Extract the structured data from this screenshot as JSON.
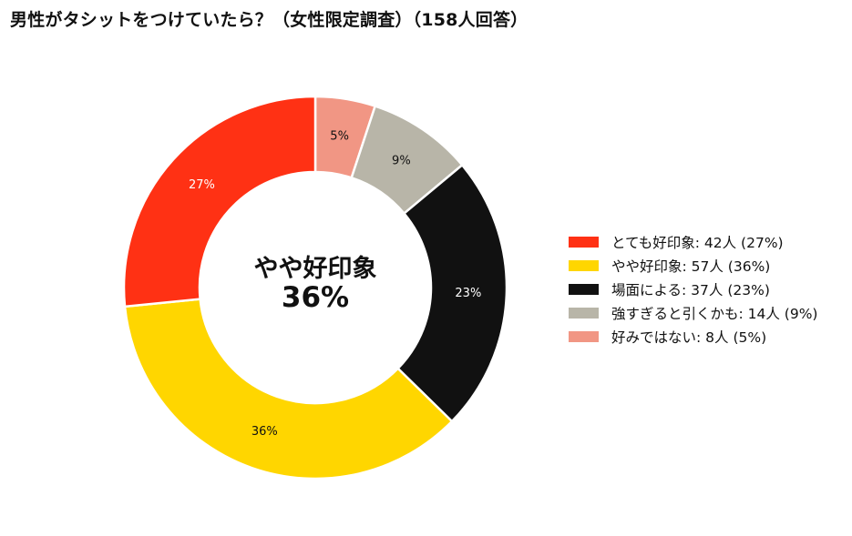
{
  "title": "男性がタシットをつけていたら？（女性限定調査）（158人回答）",
  "center": {
    "category": "やや好印象",
    "value": "36%"
  },
  "chart_data": {
    "type": "pie",
    "donut": true,
    "title": "男性がタシットをつけていたら？（女性限定調査）（158人回答）",
    "total": 158,
    "start_angle_deg": 0,
    "direction": "clockwise",
    "legend_position": "right",
    "categories": [
      "とても好印象",
      "やや好印象",
      "場面による",
      "強すぎると引くかも",
      "好みではない"
    ],
    "values": [
      42,
      57,
      37,
      14,
      8
    ],
    "percent_labels": [
      "27%",
      "36%",
      "23%",
      "9%",
      "5%"
    ],
    "colors": [
      "#ff3114",
      "#ffd600",
      "#111111",
      "#b8b5a8",
      "#f19684"
    ],
    "label_colors": [
      "#ffffff",
      "#111111",
      "#ffffff",
      "#111111",
      "#111111"
    ],
    "slice_order": [
      4,
      3,
      2,
      1,
      0
    ]
  },
  "legend": {
    "items": [
      {
        "label": "とても好印象:  42人 (27%)",
        "color": "#ff3114"
      },
      {
        "label": "やや好印象:  57人 (36%)",
        "color": "#ffd600"
      },
      {
        "label": "場面による:  37人 (23%)",
        "color": "#111111"
      },
      {
        "label": "強すぎると引くかも:  14人 (9%)",
        "color": "#b8b5a8"
      },
      {
        "label": "好みではない:  8人 (5%)",
        "color": "#f19684"
      }
    ]
  }
}
